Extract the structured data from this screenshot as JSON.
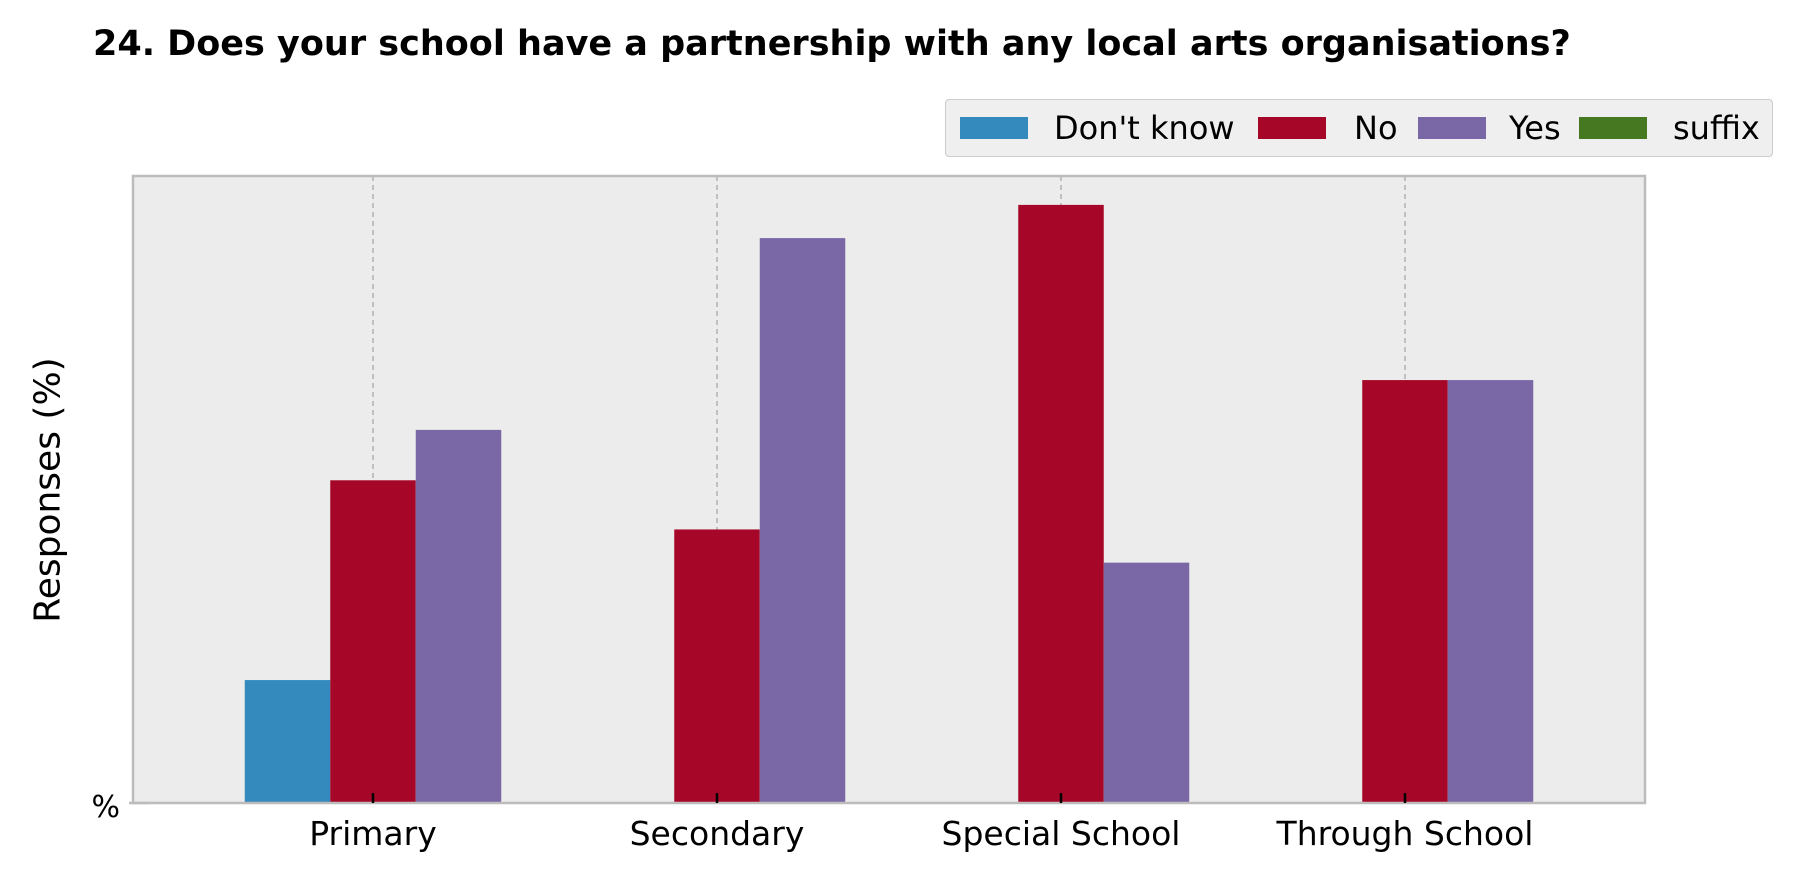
{
  "chart_data": {
    "type": "bar",
    "title": "24. Does your school have a partnership with any local arts organisations?",
    "xlabel": "",
    "ylabel": "Responses (%)",
    "y_tick_labels": [
      "%"
    ],
    "categories": [
      "Primary",
      "Secondary",
      "Special School",
      "Through School"
    ],
    "series": [
      {
        "name": "Don't know",
        "color": "#348abd",
        "values": [
          20,
          0,
          0,
          0
        ]
      },
      {
        "name": "No",
        "color": "#a60628",
        "values": [
          52.5,
          44.5,
          97.3,
          68.8
        ]
      },
      {
        "name": "Yes",
        "color": "#7a68a6",
        "values": [
          60.7,
          91.9,
          39.1,
          68.8
        ]
      },
      {
        "name": "suffix",
        "color": "#467821",
        "values": [
          0,
          0,
          0,
          0
        ]
      }
    ],
    "ylim": [
      0,
      102
    ],
    "grid": "vertical dashed",
    "legend_position": "top-right",
    "background": "#ececec"
  }
}
